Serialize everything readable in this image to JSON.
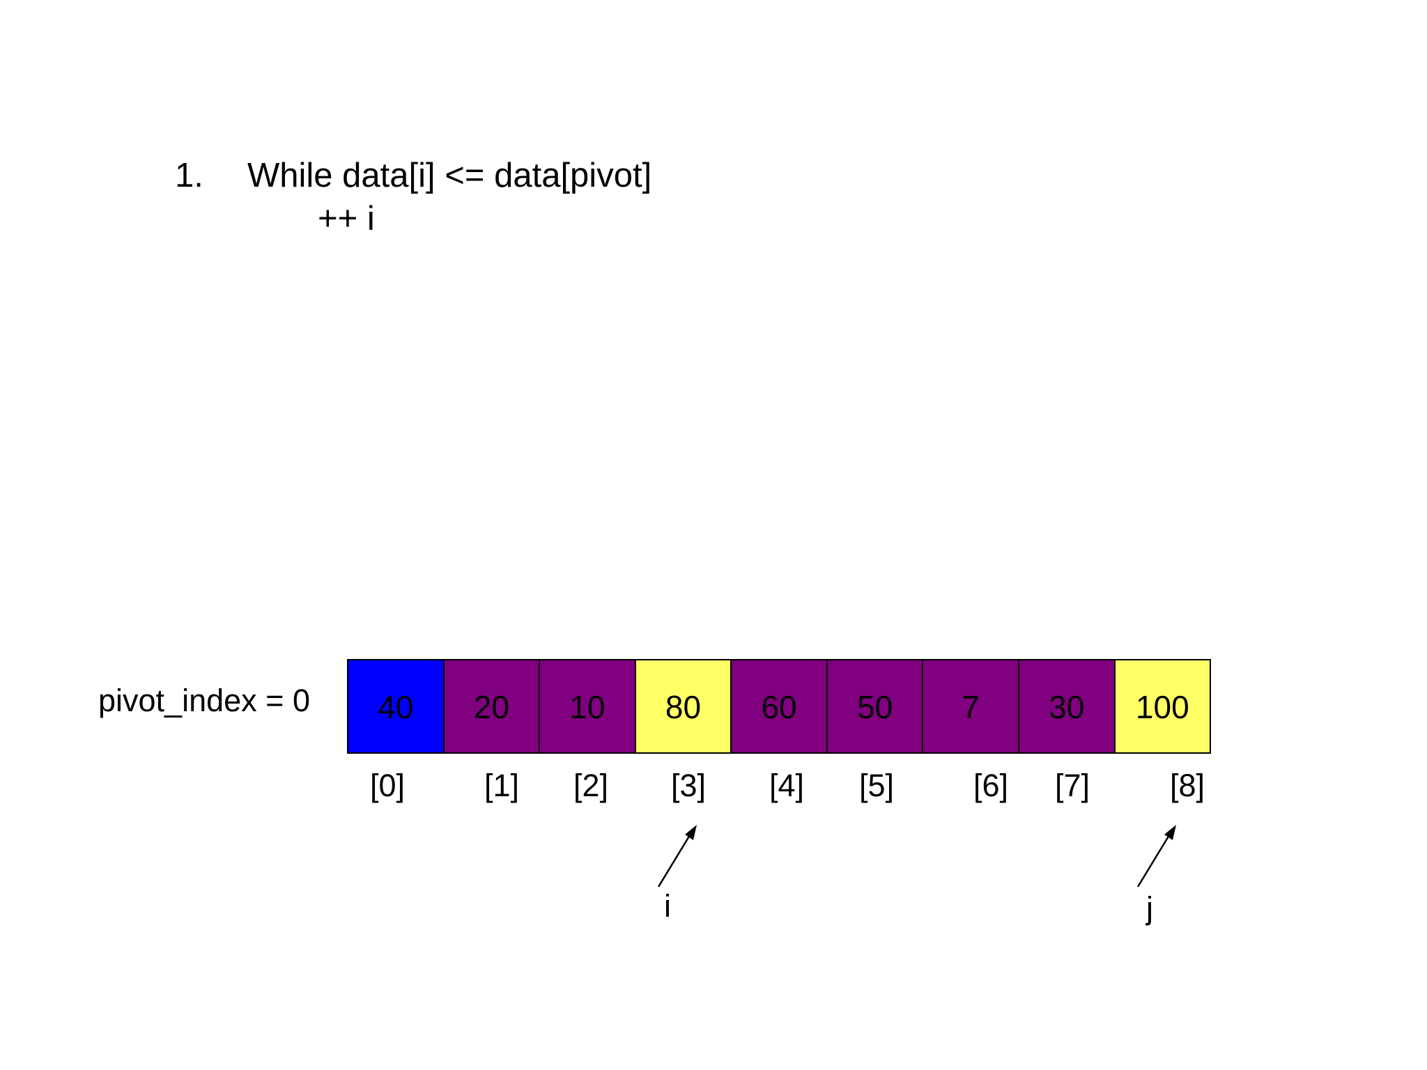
{
  "step": {
    "number": "1.",
    "line1": "While data[i] <= data[pivot]",
    "line2": "++ i"
  },
  "pivot_label": "pivot_index = 0",
  "array": {
    "cells": [
      {
        "value": "40",
        "color": "#0000FF"
      },
      {
        "value": "20",
        "color": "#800080"
      },
      {
        "value": "10",
        "color": "#800080"
      },
      {
        "value": "80",
        "color": "#FFFF66"
      },
      {
        "value": "60",
        "color": "#800080"
      },
      {
        "value": "50",
        "color": "#800080"
      },
      {
        "value": "7",
        "color": "#800080"
      },
      {
        "value": "30",
        "color": "#800080"
      },
      {
        "value": "100",
        "color": "#FFFF66"
      }
    ],
    "indices": [
      "[0]",
      "[1]",
      "[2]",
      "[3]",
      "[4]",
      "[5]",
      "[6]",
      "[7]",
      "[8]"
    ]
  },
  "pointers": {
    "i": {
      "label": "i",
      "points_to_index": 3
    },
    "j": {
      "label": "j",
      "points_to_index": 8
    }
  }
}
